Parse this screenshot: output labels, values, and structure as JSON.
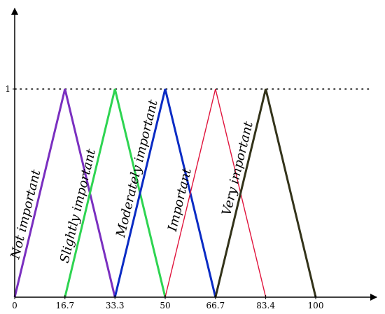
{
  "chart_data": {
    "type": "line",
    "title": "",
    "xlabel": "",
    "ylabel": "",
    "xlim": [
      0,
      120
    ],
    "ylim": [
      0,
      1.45
    ],
    "x_ticks": [
      "0",
      "16.7",
      "33.3",
      "50",
      "66.7",
      "83.4",
      "100"
    ],
    "y_ticks": [
      "1"
    ],
    "grid": false,
    "reference_line": {
      "y": 1,
      "style": "dotted"
    },
    "series": [
      {
        "name": "Not important",
        "color": "#7a2fc0",
        "x": [
          0,
          16.7,
          33.3
        ],
        "y": [
          0,
          1,
          0
        ]
      },
      {
        "name": "Slightly important",
        "color": "#2ed451",
        "x": [
          16.7,
          33.3,
          50
        ],
        "y": [
          0,
          1,
          0
        ]
      },
      {
        "name": "Moderately important",
        "color": "#0a2bc4",
        "x": [
          33.3,
          50,
          66.7
        ],
        "y": [
          0,
          1,
          0
        ]
      },
      {
        "name": "Important",
        "color": "#e0143c",
        "x": [
          50,
          66.7,
          83.4
        ],
        "y": [
          0,
          1,
          0
        ]
      },
      {
        "name": "Very important",
        "color": "#33331a",
        "x": [
          66.7,
          83.4,
          100
        ],
        "y": [
          0,
          1,
          0
        ]
      }
    ]
  }
}
